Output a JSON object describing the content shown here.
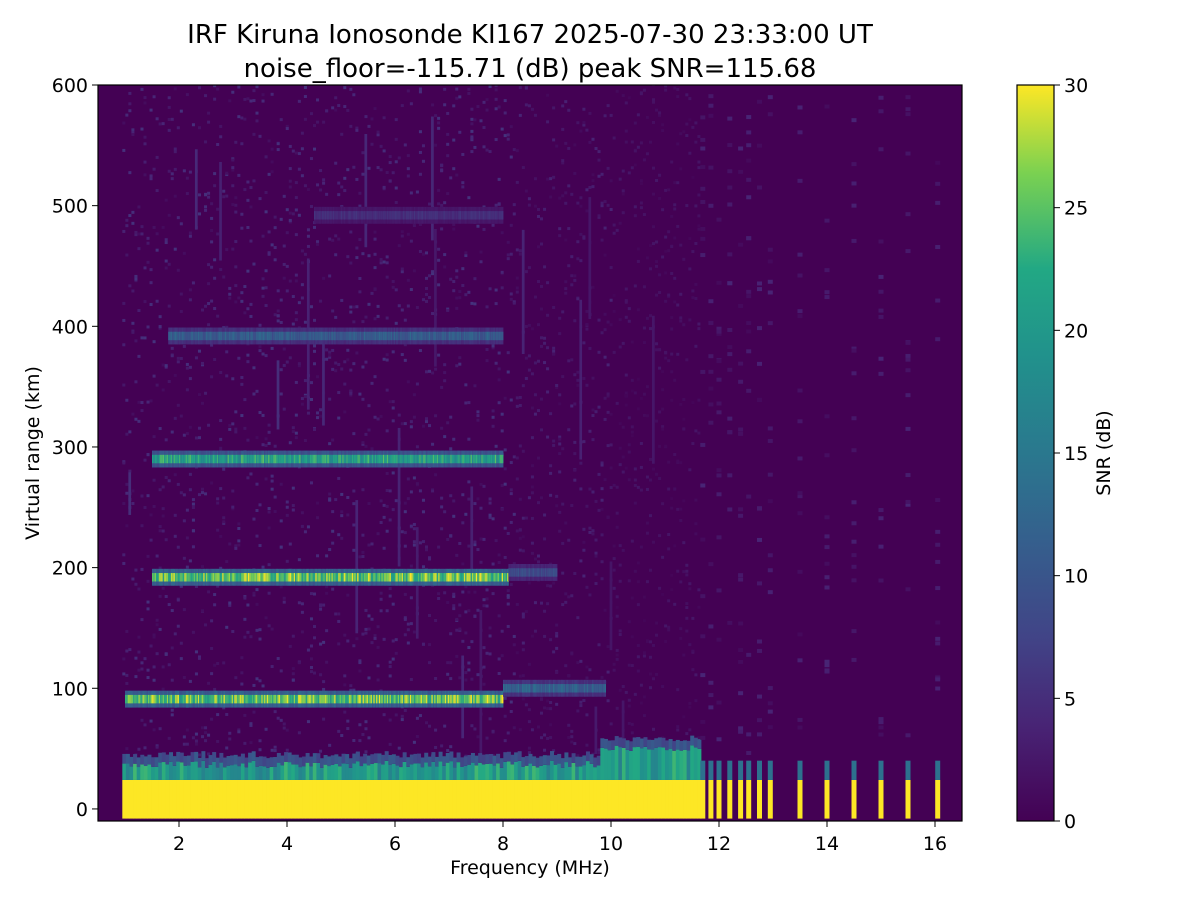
{
  "chart_data": {
    "type": "heatmap",
    "title_line1": "IRF Kiruna Ionosonde KI167 2025-07-30 23:33:00  UT",
    "title_line2": "noise_floor=-115.71 (dB) peak SNR=115.68",
    "xlabel": "Frequency (MHz)",
    "ylabel": "Virtual range (km)",
    "colorbar_label": "SNR (dB)",
    "colormap": "viridis",
    "xlim": [
      0.5,
      16.5
    ],
    "ylim": [
      -10,
      600
    ],
    "clim": [
      0,
      30
    ],
    "x_ticks": [
      "2",
      "4",
      "6",
      "8",
      "10",
      "12",
      "14",
      "16"
    ],
    "y_ticks": [
      "0",
      "100",
      "200",
      "300",
      "400",
      "500",
      "600"
    ],
    "colorbar_ticks": [
      "0",
      "5",
      "10",
      "15",
      "20",
      "25",
      "30"
    ],
    "data_freq_range_mhz": [
      0.95,
      16.3
    ],
    "dense_sweep_end_mhz": 11.6,
    "traces": [
      {
        "name": "E-layer echo",
        "range_km": 91,
        "f_start_mhz": 1.0,
        "f_end_mhz": 8.0,
        "peak_snr_db": 30
      },
      {
        "name": "E-layer echo (upper)",
        "range_km": 100,
        "f_start_mhz": 8.0,
        "f_end_mhz": 9.9,
        "peak_snr_db": 14
      },
      {
        "name": "2nd multiple",
        "range_km": 192,
        "f_start_mhz": 1.5,
        "f_end_mhz": 8.1,
        "peak_snr_db": 30
      },
      {
        "name": "2nd multiple (upper)",
        "range_km": 196,
        "f_start_mhz": 8.1,
        "f_end_mhz": 9.0,
        "peak_snr_db": 10
      },
      {
        "name": "3rd multiple",
        "range_km": 290,
        "f_start_mhz": 1.5,
        "f_end_mhz": 8.0,
        "peak_snr_db": 25
      },
      {
        "name": "4th multiple",
        "range_km": 392,
        "f_start_mhz": 1.8,
        "f_end_mhz": 8.0,
        "peak_snr_db": 13
      },
      {
        "name": "5th multiple",
        "range_km": 492,
        "f_start_mhz": 4.5,
        "f_end_mhz": 8.0,
        "peak_snr_db": 6
      }
    ],
    "ground_clutter": {
      "range_top_km": 20,
      "snr_db": 30,
      "f_start_mhz": 0.95,
      "f_end_mhz": 11.6
    },
    "sparse_spikes_mhz": [
      11.7,
      11.85,
      12.0,
      12.2,
      12.4,
      12.55,
      12.75,
      12.95,
      13.5,
      14.0,
      14.5,
      15.0,
      15.5,
      16.05
    ]
  }
}
